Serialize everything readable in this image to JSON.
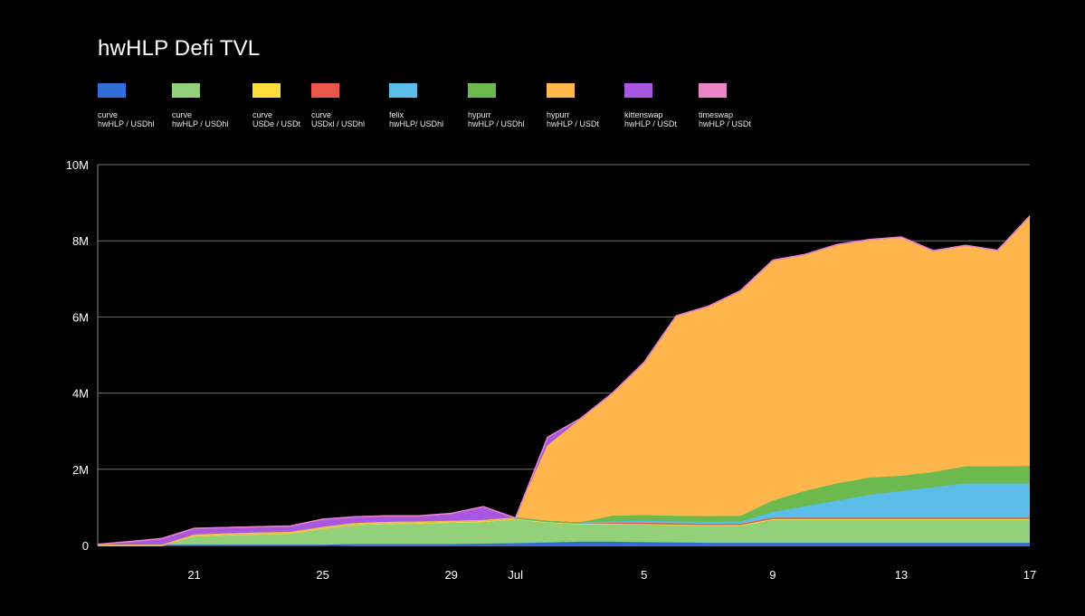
{
  "title": "hwHLP Defi TVL",
  "legend": [
    {
      "line1": "curve",
      "line2": "hwHLP / USDhl",
      "color": "#2f6fd6"
    },
    {
      "line1": "curve",
      "line2": "hwHLP / USDhl",
      "color": "#93d07a"
    },
    {
      "line1": "curve",
      "line2": "USDe / USDt",
      "color": "#fddc3c"
    },
    {
      "line1": "curve",
      "line2": "USDxl / USDhl",
      "color": "#e8574a"
    },
    {
      "line1": "felix",
      "line2": "hwHLP/ USDhl",
      "color": "#5bbde8"
    },
    {
      "line1": "hypurr",
      "line2": "hwHLP / USDhl",
      "color": "#6cba4e"
    },
    {
      "line1": "hypurr",
      "line2": "hwHLP / USDt",
      "color": "#ffb74d"
    },
    {
      "line1": "kittenswap",
      "line2": "hwHLP / USDt",
      "color": "#a858e0"
    },
    {
      "line1": "timeswap",
      "line2": "hwHLP / USDt",
      "color": "#ec82c8"
    }
  ],
  "chart_data": {
    "type": "area",
    "stacked": true,
    "title": "hwHLP Defi TVL",
    "ylim": [
      0,
      10000000
    ],
    "y_ticks": [
      0,
      2000000,
      4000000,
      6000000,
      8000000,
      10000000
    ],
    "y_tick_labels": [
      "0",
      "2M",
      "4M",
      "6M",
      "8M",
      "10M"
    ],
    "x_tick_labels": [
      {
        "day": 21,
        "label": "21"
      },
      {
        "day": 25,
        "label": "25"
      },
      {
        "day": 29,
        "label": "29"
      },
      {
        "day": 31,
        "label": "Jul"
      },
      {
        "day": 35,
        "label": "5"
      },
      {
        "day": 39,
        "label": "9"
      },
      {
        "day": 43,
        "label": "13"
      },
      {
        "day": 47,
        "label": "17"
      }
    ],
    "grid": true,
    "legend_position": "top",
    "x": [
      18,
      19,
      20,
      21,
      22,
      23,
      24,
      25,
      26,
      27,
      28,
      29,
      30,
      31,
      32,
      33,
      34,
      35,
      36,
      37,
      38,
      39,
      40,
      41,
      42,
      43,
      44,
      45,
      46,
      47
    ],
    "series": [
      {
        "name": "curve hwHLP / USDhl",
        "color": "#2f6fd6",
        "values": [
          0,
          0,
          0,
          0,
          0,
          0,
          0,
          0,
          20000,
          20000,
          20000,
          20000,
          30000,
          40000,
          60000,
          80000,
          80000,
          70000,
          60000,
          50000,
          50000,
          50000,
          50000,
          50000,
          50000,
          50000,
          50000,
          50000,
          50000,
          50000
        ]
      },
      {
        "name": "curve hwHLP / USDhl",
        "color": "#93d07a",
        "values": [
          0,
          0,
          0,
          250000,
          280000,
          300000,
          320000,
          450000,
          530000,
          560000,
          570000,
          590000,
          600000,
          660000,
          550000,
          490000,
          490000,
          490000,
          480000,
          480000,
          480000,
          640000,
          640000,
          640000,
          640000,
          640000,
          640000,
          640000,
          640000,
          640000
        ]
      },
      {
        "name": "curve USDe / USDt",
        "color": "#fddc3c",
        "values": [
          0,
          0,
          0,
          0,
          0,
          0,
          0,
          0,
          0,
          0,
          0,
          0,
          0,
          0,
          0,
          0,
          0,
          0,
          0,
          0,
          0,
          0,
          0,
          0,
          0,
          0,
          0,
          0,
          0,
          0
        ]
      },
      {
        "name": "curve USDxl / USDhl",
        "color": "#e8574a",
        "values": [
          0,
          0,
          0,
          20000,
          20000,
          20000,
          20000,
          20000,
          20000,
          20000,
          20000,
          20000,
          20000,
          20000,
          20000,
          20000,
          20000,
          20000,
          20000,
          20000,
          20000,
          20000,
          20000,
          20000,
          20000,
          20000,
          20000,
          20000,
          20000,
          20000
        ]
      },
      {
        "name": "felix hwHLP/ USDhl",
        "color": "#5bbde8",
        "values": [
          0,
          0,
          0,
          0,
          0,
          0,
          0,
          0,
          0,
          0,
          0,
          0,
          0,
          0,
          0,
          0,
          20000,
          50000,
          50000,
          50000,
          60000,
          150000,
          300000,
          450000,
          600000,
          700000,
          800000,
          900000,
          900000,
          900000
        ]
      },
      {
        "name": "hypurr hwHLP / USDhl",
        "color": "#6cba4e",
        "values": [
          0,
          0,
          0,
          0,
          0,
          0,
          0,
          0,
          0,
          0,
          0,
          0,
          0,
          0,
          0,
          0,
          150000,
          150000,
          150000,
          150000,
          150000,
          300000,
          400000,
          450000,
          450000,
          400000,
          400000,
          450000,
          450000,
          460000
        ]
      },
      {
        "name": "hypurr hwHLP / USDt",
        "color": "#ffb74d",
        "values": [
          0,
          0,
          0,
          0,
          0,
          0,
          0,
          0,
          0,
          0,
          0,
          0,
          0,
          0,
          1980000,
          2700000,
          3200000,
          4000000,
          5240000,
          5500000,
          5900000,
          6300000,
          6200000,
          6260000,
          6240000,
          6260000,
          5800000,
          5790000,
          5660000,
          6550000
        ]
      },
      {
        "name": "kittenswap hwHLP / USDt",
        "color": "#a858e0",
        "values": [
          30000,
          100000,
          180000,
          180000,
          170000,
          170000,
          170000,
          220000,
          180000,
          180000,
          170000,
          210000,
          370000,
          0,
          230000,
          30000,
          30000,
          30000,
          30000,
          30000,
          30000,
          30000,
          30000,
          30000,
          30000,
          30000,
          30000,
          30000,
          30000,
          30000
        ]
      },
      {
        "name": "timeswap hwHLP / USDt",
        "color": "#ec82c8",
        "values": [
          0,
          0,
          0,
          0,
          0,
          0,
          0,
          0,
          0,
          0,
          0,
          0,
          0,
          0,
          0,
          0,
          0,
          0,
          0,
          0,
          0,
          0,
          0,
          0,
          0,
          0,
          0,
          0,
          0,
          0
        ]
      }
    ]
  }
}
